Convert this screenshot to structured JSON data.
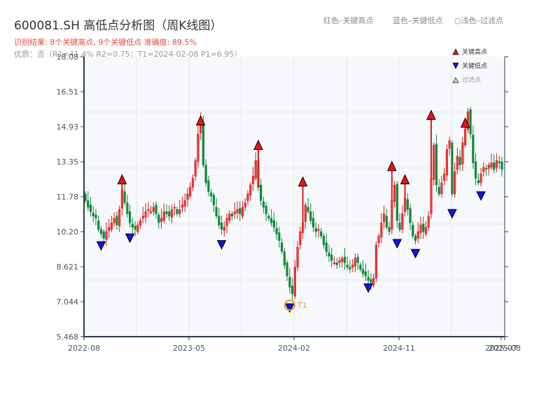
{
  "header": {
    "title": "600081.SH 高低点分析图（周K线图）",
    "result_line": "识别结果: 8个关键高点, 9个关键低点  准确度: 89.5%",
    "quality_line": "优质：否（R1=41.4%  R2=0.75；T1=2024-02-08 P1=6.95）"
  },
  "top_legend": {
    "red": "红色–关键高点",
    "blue": "蓝色–关键低点",
    "light": "○浅色–过滤点"
  },
  "legend": {
    "items": [
      {
        "label": "关键高点",
        "symbol": "triangle-up",
        "color": "#ee1111"
      },
      {
        "label": "关键低点",
        "symbol": "triangle-down",
        "color": "#1111ee"
      },
      {
        "label": "过滤点",
        "symbol": "triangle-up-light",
        "color": "#f8c8c8"
      }
    ]
  },
  "colors": {
    "up": "#d81e1e",
    "down": "#0c8a3a",
    "high_marker": "#ee1111",
    "low_marker": "#1111ee",
    "t1_ring": "#f0a030",
    "plot_bg": "#f6f8fb",
    "grid": "#e2e5ea",
    "axis": "#2c3a4b"
  },
  "chart_data": {
    "type": "candlestick",
    "title": "600081.SH 高低点分析图（周K线图）",
    "xlabel": "",
    "ylabel": "",
    "ylim": [
      5.468,
      18.08
    ],
    "y_ticks": [
      "18.08",
      "16.51",
      "14.93",
      "13.35",
      "11.78",
      "10.20",
      "8.621",
      "7.044",
      "5.468"
    ],
    "x_ticks": [
      "2022-08",
      "2023-05",
      "2024-02",
      "2024-11",
      "2025-07",
      "2025-08"
    ],
    "grid": true,
    "legend_position": "upper right",
    "annotation": {
      "label": "T1",
      "date": "2024-02-08",
      "price": 6.95
    },
    "closes": [
      11.6,
      11.3,
      11.1,
      10.9,
      10.8,
      10.3,
      10.1,
      9.9,
      10.2,
      10.4,
      10.6,
      10.8,
      10.5,
      11.2,
      12.1,
      11.5,
      11.0,
      10.6,
      10.4,
      10.3,
      10.5,
      10.7,
      10.9,
      11.1,
      11.2,
      11.1,
      11.3,
      11.0,
      10.6,
      10.8,
      11.1,
      11.0,
      10.9,
      11.2,
      11.3,
      11.0,
      11.2,
      11.4,
      11.6,
      11.9,
      12.2,
      12.6,
      13.4,
      14.6,
      15.2,
      13.2,
      12.4,
      12.0,
      11.8,
      11.4,
      10.9,
      10.5,
      10.3,
      10.4,
      10.8,
      11.0,
      10.9,
      11.1,
      11.2,
      11.0,
      11.3,
      11.5,
      11.9,
      12.3,
      12.7,
      13.4,
      12.2,
      11.6,
      11.3,
      11.0,
      10.8,
      10.6,
      10.4,
      10.1,
      9.8,
      9.3,
      8.7,
      8.2,
      7.7,
      7.4,
      8.6,
      9.5,
      10.2,
      10.6,
      11.4,
      11.1,
      10.7,
      10.4,
      10.2,
      10.3,
      10.0,
      9.6,
      9.3,
      9.1,
      8.9,
      8.8,
      8.7,
      8.9,
      9.0,
      8.8,
      8.6,
      8.5,
      8.7,
      9.0,
      8.8,
      8.5,
      8.3,
      8.2,
      8.0,
      7.9,
      8.1,
      9.6,
      10.0,
      10.6,
      11.0,
      10.4,
      10.2,
      11.6,
      12.3,
      10.7,
      10.3,
      11.0,
      11.7,
      11.2,
      10.6,
      10.0,
      9.8,
      10.2,
      10.5,
      10.2,
      10.4,
      10.9,
      12.6,
      14.1,
      12.3,
      11.9,
      12.4,
      12.8,
      13.9,
      14.3,
      11.9,
      12.9,
      13.6,
      13.2,
      14.2,
      14.8,
      15.6,
      14.6,
      13.3,
      12.6,
      12.4,
      12.8,
      13.1,
      13.0,
      13.2,
      13.3,
      13.0,
      13.4,
      13.3,
      13.0
    ],
    "key_highs": [
      {
        "index": 14,
        "price": 12.35
      },
      {
        "index": 44,
        "price": 15.0
      },
      {
        "index": 66,
        "price": 13.9
      },
      {
        "index": 83,
        "price": 12.25
      },
      {
        "index": 117,
        "price": 12.95
      },
      {
        "index": 122,
        "price": 12.35
      },
      {
        "index": 132,
        "price": 15.25
      },
      {
        "index": 145,
        "price": 14.9
      }
    ],
    "key_lows": [
      {
        "index": 6,
        "price": 9.75
      },
      {
        "index": 17,
        "price": 10.1
      },
      {
        "index": 52,
        "price": 9.8
      },
      {
        "index": 78,
        "price": 6.95
      },
      {
        "index": 108,
        "price": 7.85
      },
      {
        "index": 119,
        "price": 9.85
      },
      {
        "index": 126,
        "price": 9.4
      },
      {
        "index": 140,
        "price": 11.2
      },
      {
        "index": 151,
        "price": 12.0
      }
    ]
  }
}
